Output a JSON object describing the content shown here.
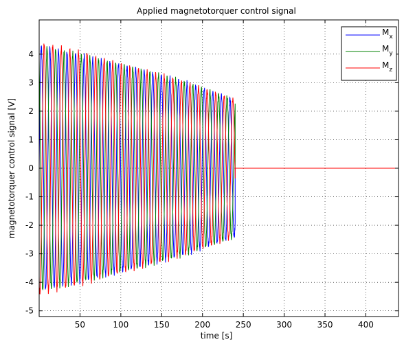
{
  "chart_data": {
    "type": "line",
    "title": "Applied magnetotorquer control signal",
    "xlabel": "time [s]",
    "ylabel": "magnetotorquer control signal [V]",
    "xlim": [
      0,
      440
    ],
    "ylim": [
      -5.2,
      5.2
    ],
    "xticks": [
      50,
      100,
      150,
      200,
      250,
      300,
      350,
      400
    ],
    "yticks": [
      -5,
      -4,
      -3,
      -2,
      -1,
      0,
      1,
      2,
      3,
      4
    ],
    "grid": true,
    "legend_position": "top-right",
    "active_until": 240,
    "series": [
      {
        "name": "M",
        "subscript": "x",
        "color": "#0000ff",
        "period": 10.5,
        "phase": 0,
        "envelope": [
          {
            "t": 0,
            "amp": 4.3
          },
          {
            "t": 60,
            "amp": 3.9
          },
          {
            "t": 120,
            "amp": 3.5
          },
          {
            "t": 180,
            "amp": 3.0
          },
          {
            "t": 240,
            "amp": 2.4
          },
          {
            "t": 440,
            "amp": 0
          }
        ],
        "end_value": 0
      },
      {
        "name": "M",
        "subscript": "y",
        "color": "#008000",
        "period": 10.5,
        "phase": 2.094,
        "envelope": [
          {
            "t": 0,
            "amp": 4.3
          },
          {
            "t": 60,
            "amp": 3.9
          },
          {
            "t": 120,
            "amp": 3.5
          },
          {
            "t": 180,
            "amp": 3.0
          },
          {
            "t": 240,
            "amp": 2.4
          },
          {
            "t": 440,
            "amp": 0
          }
        ],
        "end_value": 0
      },
      {
        "name": "M",
        "subscript": "z",
        "color": "#ff0000",
        "period": 10.5,
        "phase": 4.189,
        "envelope": [
          {
            "t": 0,
            "amp": 4.4
          },
          {
            "t": 60,
            "amp": 4.0
          },
          {
            "t": 120,
            "amp": 3.5
          },
          {
            "t": 180,
            "amp": 3.0
          },
          {
            "t": 240,
            "amp": 2.4
          },
          {
            "t": 440,
            "amp": 0
          }
        ],
        "end_value": 0
      }
    ]
  }
}
